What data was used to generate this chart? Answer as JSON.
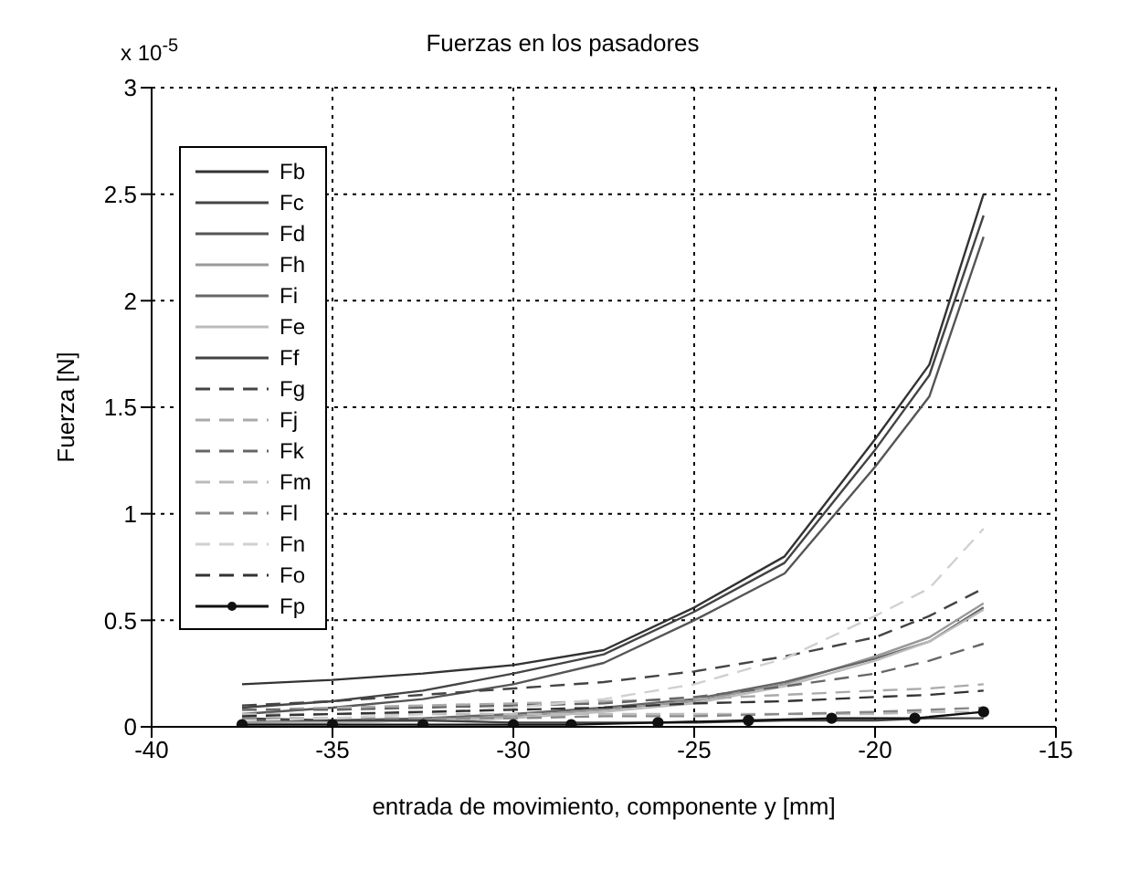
{
  "chart_data": {
    "type": "line",
    "title": "Fuerzas en los pasadores",
    "xlabel": "entrada de movimiento, componente y [mm]",
    "ylabel": "Fuerza [N]",
    "annotations": [
      "x 10$^{-5}$"
    ],
    "x": [
      -37.5,
      -35,
      -32.5,
      -30,
      -27.5,
      -25,
      -22.5,
      -20,
      -18.5,
      -17
    ],
    "xlim": [
      -40,
      -15
    ],
    "xticks": [
      -40,
      -35,
      -30,
      -25,
      -20,
      -15
    ],
    "ylim": [
      0,
      3
    ],
    "yticks": [
      0,
      0.5,
      1,
      1.5,
      2,
      2.5,
      3
    ],
    "grid": true,
    "legend": "top left",
    "marker": "none",
    "line_style": "solid",
    "series": [
      {
        "name": "Fb",
        "color": "#333333",
        "values": [
          0.2,
          0.22,
          0.25,
          0.29,
          0.36,
          0.56,
          0.8,
          1.35,
          1.7,
          2.5
        ]
      },
      {
        "name": "Fc",
        "color": "#444444",
        "values": [
          0.09,
          0.12,
          0.17,
          0.25,
          0.34,
          0.54,
          0.77,
          1.3,
          1.65,
          2.4
        ]
      },
      {
        "name": "Fd",
        "color": "#555555",
        "values": [
          0.06,
          0.09,
          0.13,
          0.2,
          0.3,
          0.5,
          0.72,
          1.22,
          1.55,
          2.3
        ]
      },
      {
        "name": "Fh",
        "color": "#999999",
        "values": [
          0.02,
          0.02,
          0.03,
          0.05,
          0.08,
          0.12,
          0.2,
          0.33,
          0.42,
          0.58
        ]
      },
      {
        "name": "Fi",
        "color": "#666666",
        "values": [
          0.03,
          0.03,
          0.04,
          0.06,
          0.09,
          0.13,
          0.21,
          0.32,
          0.4,
          0.56
        ]
      },
      {
        "name": "Fe",
        "color": "#bbbbbb",
        "values": [
          0.01,
          0.02,
          0.03,
          0.04,
          0.07,
          0.11,
          0.19,
          0.31,
          0.4,
          0.55
        ]
      },
      {
        "name": "Ff",
        "color": "#444444",
        "values": [
          0.04,
          0.03,
          0.03,
          0.02,
          0.02,
          0.02,
          0.03,
          0.03,
          0.04,
          0.04
        ]
      },
      {
        "name": "Fg",
        "color": "#444444",
        "line_style": "dashed",
        "values": [
          0.1,
          0.12,
          0.15,
          0.18,
          0.21,
          0.26,
          0.33,
          0.42,
          0.52,
          0.65
        ]
      },
      {
        "name": "Fj",
        "color": "#aaaaaa",
        "line_style": "dashed",
        "values": [
          0.08,
          0.09,
          0.1,
          0.11,
          0.12,
          0.13,
          0.15,
          0.17,
          0.18,
          0.2
        ]
      },
      {
        "name": "Fk",
        "color": "#666666",
        "line_style": "dashed",
        "values": [
          0.08,
          0.08,
          0.09,
          0.1,
          0.11,
          0.14,
          0.19,
          0.25,
          0.31,
          0.39
        ]
      },
      {
        "name": "Fm",
        "color": "#bbbbbb",
        "line_style": "dashed",
        "values": [
          0.06,
          0.06,
          0.06,
          0.06,
          0.06,
          0.06,
          0.06,
          0.06,
          0.07,
          0.07
        ]
      },
      {
        "name": "Fl",
        "color": "#888888",
        "line_style": "dashed",
        "values": [
          0.04,
          0.04,
          0.04,
          0.04,
          0.05,
          0.05,
          0.06,
          0.07,
          0.08,
          0.09
        ]
      },
      {
        "name": "Fn",
        "color": "#d0d0d0",
        "line_style": "dashed",
        "values": [
          0.03,
          0.04,
          0.06,
          0.09,
          0.13,
          0.2,
          0.32,
          0.52,
          0.65,
          0.93
        ]
      },
      {
        "name": "Fo",
        "color": "#333333",
        "line_style": "dashed",
        "values": [
          0.05,
          0.06,
          0.07,
          0.08,
          0.09,
          0.11,
          0.12,
          0.14,
          0.15,
          0.17
        ]
      },
      {
        "name": "Fp",
        "color": "#111111",
        "marker": "circle",
        "x": [
          -37.5,
          -35,
          -32.5,
          -30,
          -28.4,
          -26,
          -23.5,
          -21.2,
          -18.9,
          -17
        ],
        "values": [
          0.01,
          0.01,
          0.01,
          0.01,
          0.01,
          0.02,
          0.03,
          0.04,
          0.04,
          0.07
        ]
      }
    ]
  }
}
